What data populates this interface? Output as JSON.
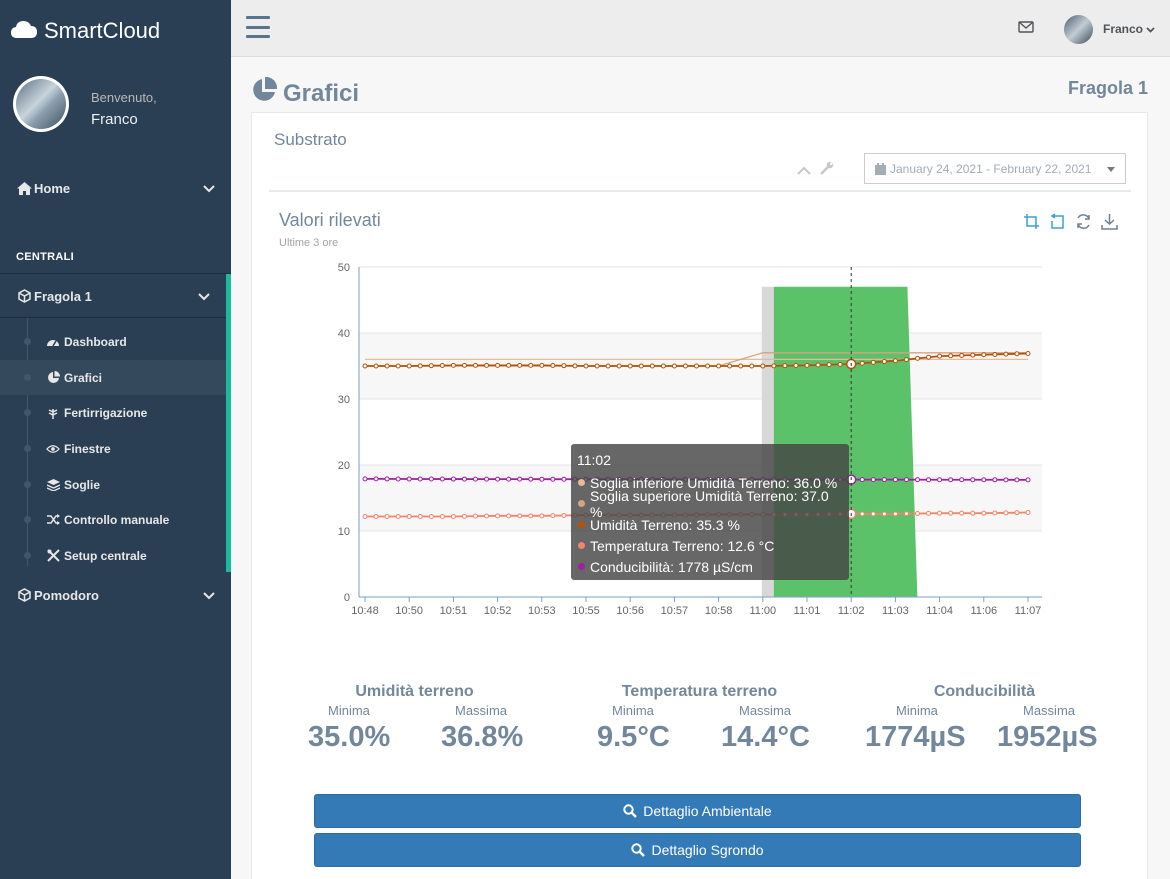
{
  "brand": {
    "name": "SmartCloud",
    "icon": "cloud-icon"
  },
  "profile": {
    "welcome": "Benvenuto,",
    "name": "Franco"
  },
  "sidebar": {
    "home_label": "Home",
    "section_title": "CENTRALI",
    "fragola_label": "Fragola 1",
    "items": [
      {
        "label": "Dashboard",
        "icon": "dashboard-icon"
      },
      {
        "label": "Grafici",
        "icon": "pie-chart-icon"
      },
      {
        "label": "Fertirrigazione",
        "icon": "plant-icon"
      },
      {
        "label": "Finestre",
        "icon": "eye-icon"
      },
      {
        "label": "Soglie",
        "icon": "layers-icon"
      },
      {
        "label": "Controllo manuale",
        "icon": "shuffle-icon"
      },
      {
        "label": "Setup centrale",
        "icon": "tools-icon"
      }
    ],
    "pomodoro_label": "Pomodoro"
  },
  "topbar": {
    "user_name": "Franco"
  },
  "page": {
    "title": "Grafici",
    "right_title": "Fragola 1"
  },
  "panel": {
    "title": "Substrato",
    "date_range": "January 24, 2021 - February 22, 2021"
  },
  "chart": {
    "title": "Valori rilevati",
    "subtitle": "Ultime 3 ore"
  },
  "colors": {
    "soglia_inf": "#e8b99a",
    "soglia_sup": "#d9a37f",
    "umidita": "#b35309",
    "temperatura": "#f2846a",
    "conducibilita": "#a020a0",
    "highlight": "#5cc26a",
    "accent": "#337ab7"
  },
  "chart_data": {
    "type": "line",
    "x": [
      "10:48",
      "10:50",
      "10:51",
      "10:52",
      "10:53",
      "10:55",
      "10:56",
      "10:57",
      "10:58",
      "11:00",
      "11:01",
      "11:02",
      "11:03",
      "11:04",
      "11:06",
      "11:07"
    ],
    "ylim": [
      0,
      50
    ],
    "yticks": [
      0,
      10,
      20,
      30,
      40,
      50
    ],
    "grid": true,
    "series": [
      {
        "name": "Soglia inferiore Umidità Terreno",
        "values": [
          36,
          36,
          36,
          36,
          36,
          36,
          36,
          36,
          36,
          36,
          36,
          36,
          36,
          36,
          36,
          36
        ]
      },
      {
        "name": "Soglia superiore Umidità Terreno",
        "values": [
          35,
          35,
          35,
          35,
          35,
          35,
          35,
          35,
          35,
          37,
          37,
          37,
          37,
          37,
          37,
          37
        ]
      },
      {
        "name": "Umidità Terreno",
        "values": [
          35,
          35,
          35.1,
          35.1,
          35.1,
          35,
          35,
          35,
          35,
          35,
          35.1,
          35.3,
          35.8,
          36.5,
          36.7,
          36.9
        ]
      },
      {
        "name": "Temperatura Terreno",
        "values": [
          12.2,
          12.2,
          12.2,
          12.3,
          12.3,
          12.4,
          12.4,
          12.4,
          12.5,
          12.5,
          12.5,
          12.6,
          12.6,
          12.7,
          12.7,
          12.8
        ]
      },
      {
        "name": "Conducibilità",
        "values": [
          1790,
          1788,
          1787,
          1786,
          1785,
          1784,
          1783,
          1782,
          1781,
          1780,
          1779,
          1778,
          1778,
          1777,
          1776,
          1775
        ]
      }
    ],
    "tooltip": {
      "time": "11:02",
      "rows": [
        {
          "text": "Soglia inferiore Umidità Terreno: 36.0 %",
          "color": "#e8b99a"
        },
        {
          "text": "Soglia superiore Umidità Terreno: 37.0 %",
          "color": "#d9a37f"
        },
        {
          "text": "Umidità Terreno: 35.3 %",
          "color": "#b35309"
        },
        {
          "text": "Temperatura Terreno: 12.6 °C",
          "color": "#f2846a"
        },
        {
          "text": "Conducibilità: 1778 µS/cm",
          "color": "#a020a0"
        }
      ]
    }
  },
  "stats": {
    "umidita": {
      "title": "Umidità terreno",
      "min_label": "Minima",
      "max_label": "Massima",
      "min": "35.0%",
      "max": "36.8%"
    },
    "temperatura": {
      "title": "Temperatura terreno",
      "min_label": "Minima",
      "max_label": "Massima",
      "min": "9.5°C",
      "max": "14.4°C"
    },
    "conducibilita": {
      "title": "Conducibilità",
      "min_label": "Minima",
      "max_label": "Massima",
      "min": "1774µS",
      "max": "1952µS"
    }
  },
  "buttons": {
    "ambientale": "Dettaglio Ambientale",
    "sgrondo": "Dettaglio Sgrondo"
  }
}
